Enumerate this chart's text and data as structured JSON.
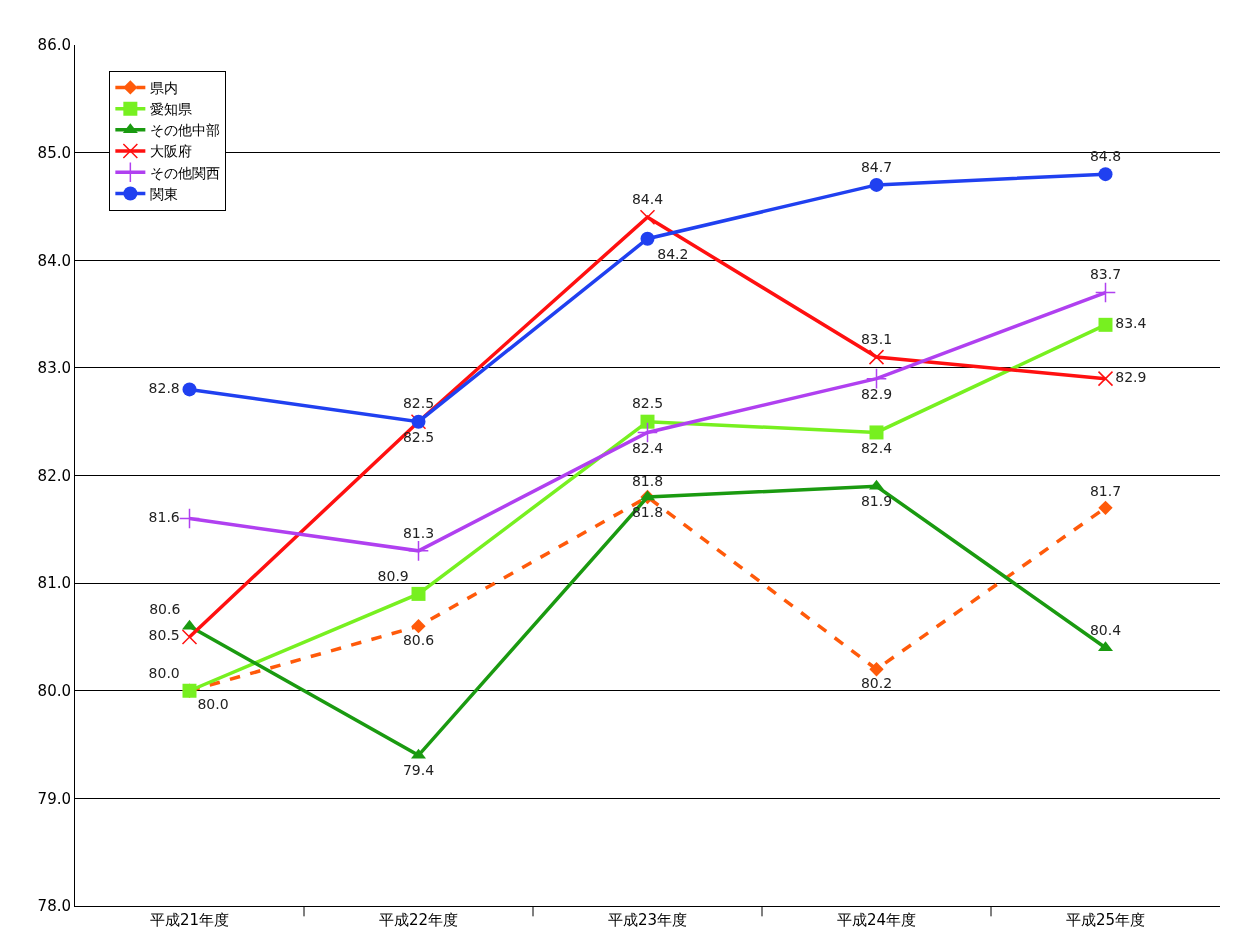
{
  "chart_data": {
    "type": "line",
    "categories": [
      "平成21年度",
      "平成22年度",
      "平成23年度",
      "平成24年度",
      "平成25年度"
    ],
    "series": [
      {
        "name": "県内",
        "color": "#ff5a0a",
        "marker": "diamond",
        "line_style": "dashed",
        "values": [
          80.0,
          80.6,
          81.8,
          80.2,
          81.7
        ],
        "value_labels": [
          "80.0",
          "80.6",
          "81.8",
          "80.2",
          "81.7"
        ]
      },
      {
        "name": "愛知県",
        "color": "#77f020",
        "marker": "square",
        "line_style": "solid",
        "values": [
          80.0,
          80.9,
          82.5,
          82.4,
          83.4
        ],
        "value_labels": [
          "80.0",
          "80.9",
          "82.5",
          "82.4",
          "83.4"
        ]
      },
      {
        "name": "その他中部",
        "color": "#1a9a10",
        "marker": "triangle",
        "line_style": "solid",
        "values": [
          80.6,
          79.4,
          81.8,
          81.9,
          80.4
        ],
        "value_labels": [
          "80.6",
          "79.4",
          "81.8",
          "81.9",
          "80.4"
        ]
      },
      {
        "name": "大阪府",
        "color": "#ff1010",
        "marker": "cross",
        "line_style": "solid",
        "values": [
          80.5,
          82.5,
          84.4,
          83.1,
          82.9
        ],
        "value_labels": [
          "80.5",
          "82.5",
          "84.4",
          "83.1",
          "82.9"
        ]
      },
      {
        "name": "その他関西",
        "color": "#b040f0",
        "marker": "plus",
        "line_style": "solid",
        "values": [
          81.6,
          81.3,
          82.4,
          82.9,
          83.7
        ],
        "value_labels": [
          "81.6",
          "81.3",
          "82.4",
          "82.9",
          "83.7"
        ]
      },
      {
        "name": "関東",
        "color": "#2040f0",
        "marker": "circle",
        "line_style": "solid",
        "values": [
          82.8,
          82.5,
          84.2,
          84.7,
          84.8
        ],
        "value_labels": [
          "82.8",
          "82.5",
          "84.2",
          "84.7",
          "84.8"
        ]
      }
    ],
    "ylim": [
      78,
      86
    ],
    "yticks": [
      {
        "value": 78,
        "label": "78.0"
      },
      {
        "value": 79,
        "label": "79.0"
      },
      {
        "value": 80,
        "label": "80.0"
      },
      {
        "value": 81,
        "label": "81.0"
      },
      {
        "value": 82,
        "label": "82.0"
      },
      {
        "value": 83,
        "label": "83.0"
      },
      {
        "value": 84,
        "label": "84.0"
      },
      {
        "value": 85,
        "label": "85.0"
      },
      {
        "value": 86,
        "label": "86.0"
      }
    ],
    "grid": "y",
    "legend": "top left"
  }
}
